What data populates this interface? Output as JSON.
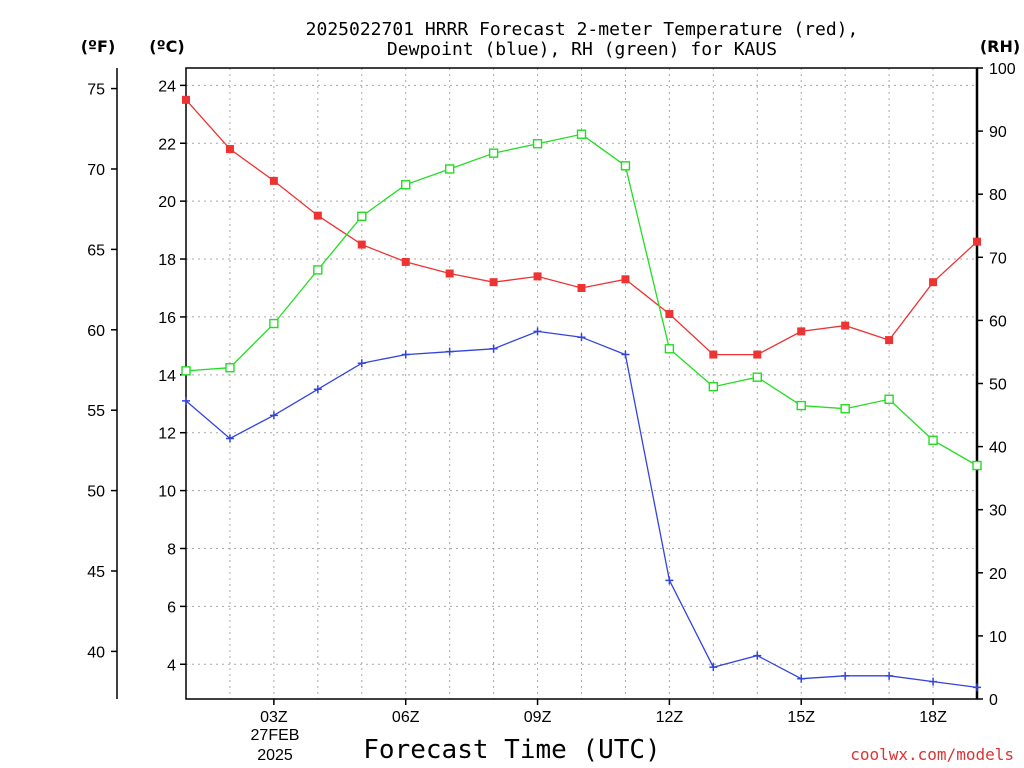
{
  "chart_data": {
    "type": "line",
    "title_lines": [
      "2025022701 HRRR Forecast 2-meter Temperature (red),",
      "Dewpoint (blue), RH (green) for KAUS"
    ],
    "xlabel": "Forecast Time (UTC)",
    "credit": "coolwx.com/models",
    "unit_labels": {
      "fahrenheit": "(ºF)",
      "celsius": "(ºC)",
      "rh": "(RH)"
    },
    "x_ticks": [
      "03Z",
      "06Z",
      "09Z",
      "12Z",
      "15Z",
      "18Z"
    ],
    "x_tick_hours": [
      3,
      6,
      9,
      12,
      15,
      18
    ],
    "date_label_lines": [
      "27FEB",
      "2025"
    ],
    "x_range_hours": [
      1,
      19
    ],
    "x_hours": [
      1,
      2,
      3,
      4,
      5,
      6,
      7,
      8,
      9,
      10,
      11,
      12,
      13,
      14,
      15,
      16,
      17,
      18,
      19
    ],
    "celsius_axis": {
      "range": [
        2.8,
        24.6
      ],
      "ticks": [
        4,
        6,
        8,
        10,
        12,
        14,
        16,
        18,
        20,
        22,
        24
      ]
    },
    "fahrenheit_axis": {
      "ticks": [
        40,
        45,
        50,
        55,
        60,
        65,
        70,
        75
      ]
    },
    "rh_axis": {
      "range": [
        0,
        100
      ],
      "ticks": [
        0,
        10,
        20,
        30,
        40,
        50,
        60,
        70,
        80,
        90,
        100
      ]
    },
    "grid": true,
    "series": [
      {
        "name": "Temperature",
        "axis": "celsius",
        "color": "#ee3333",
        "marker": "filled-square",
        "values": [
          23.5,
          21.8,
          20.7,
          19.5,
          18.5,
          17.9,
          17.5,
          17.2,
          17.4,
          17.0,
          17.3,
          16.1,
          14.7,
          14.7,
          15.5,
          15.7,
          15.2,
          17.2,
          18.6
        ]
      },
      {
        "name": "Dewpoint",
        "axis": "celsius",
        "color": "#3344dd",
        "marker": "plus",
        "values": [
          13.1,
          11.8,
          12.6,
          13.5,
          14.4,
          14.7,
          14.8,
          14.9,
          15.5,
          15.3,
          14.7,
          6.9,
          3.9,
          4.3,
          3.5,
          3.6,
          3.6,
          3.4,
          3.2
        ]
      },
      {
        "name": "RH",
        "axis": "rh",
        "color": "#22dd22",
        "marker": "hollow-square",
        "values": [
          52,
          52.5,
          59.5,
          68,
          76.5,
          81.5,
          84,
          86.5,
          88,
          89.5,
          84.5,
          55.5,
          49.5,
          51,
          46.5,
          46,
          47.5,
          41,
          37
        ]
      }
    ]
  }
}
